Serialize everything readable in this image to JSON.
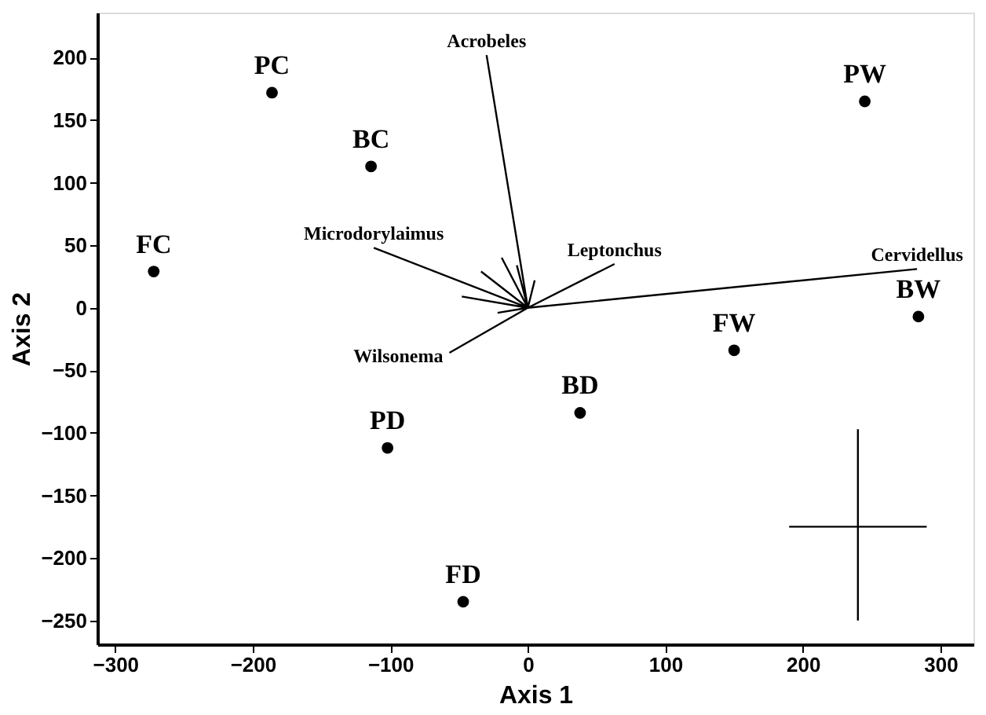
{
  "chart_data": {
    "type": "scatter",
    "xlabel": "Axis 1",
    "ylabel": "Axis 2",
    "xlim": [
      -313,
      324
    ],
    "ylim": [
      -269,
      236
    ],
    "xticks": [
      -300,
      -200,
      -100,
      0,
      100,
      200,
      300
    ],
    "yticks": [
      -250,
      -200,
      -150,
      -100,
      -50,
      0,
      50,
      100,
      150,
      200
    ],
    "grid": false,
    "marker": "circle",
    "series": [
      {
        "color": "#000000",
        "x": [
          -186,
          -114,
          -272,
          245,
          284,
          150,
          38,
          -102,
          -47
        ],
        "values": [
          172,
          113,
          29,
          165,
          -7,
          -34,
          -84,
          -112,
          -235
        ]
      },
      {
        "type": "line",
        "marker": "none",
        "color": "#000000",
        "x": [
          0,
          -30,
          null,
          0,
          283,
          null,
          0,
          63,
          null,
          0,
          -112,
          null,
          0,
          -57,
          null,
          0,
          -19,
          null,
          0,
          -34,
          null,
          0,
          -48,
          null,
          0,
          -8,
          null,
          0,
          5,
          null,
          0,
          -22
        ],
        "values": [
          0,
          202,
          null,
          0,
          31,
          null,
          0,
          35,
          null,
          0,
          48,
          null,
          0,
          -36,
          null,
          0,
          40,
          null,
          0,
          29,
          null,
          0,
          9,
          null,
          0,
          34,
          null,
          0,
          22,
          null,
          0,
          -4
        ]
      },
      {
        "type": "line",
        "marker": "none",
        "color": "#000000",
        "x": [
          240,
          240,
          null,
          190,
          290
        ],
        "values": [
          -250,
          -97,
          null,
          -175,
          -175
        ]
      }
    ],
    "annotations": [
      {
        "text": "PC",
        "x": -186,
        "y": 172
      },
      {
        "text": "BC",
        "x": -114,
        "y": 113
      },
      {
        "text": "FC",
        "x": -272,
        "y": 29
      },
      {
        "text": "PW",
        "x": 245,
        "y": 165
      },
      {
        "text": "BW",
        "x": 284,
        "y": -7
      },
      {
        "text": "FW",
        "x": 150,
        "y": -34
      },
      {
        "text": "BD",
        "x": 38,
        "y": -84
      },
      {
        "text": "PD",
        "x": -102,
        "y": -112
      },
      {
        "text": "FD",
        "x": -47,
        "y": -235
      },
      {
        "text": "Acrobeles",
        "x": -30,
        "y": 202
      },
      {
        "text": "Cervidellus",
        "x": 283,
        "y": 31
      },
      {
        "text": "Leptonchus",
        "x": 63,
        "y": 35
      },
      {
        "text": "Microdorylaimus",
        "x": -112,
        "y": 48
      },
      {
        "text": "Wilsonema",
        "x": -57,
        "y": -36
      }
    ]
  }
}
